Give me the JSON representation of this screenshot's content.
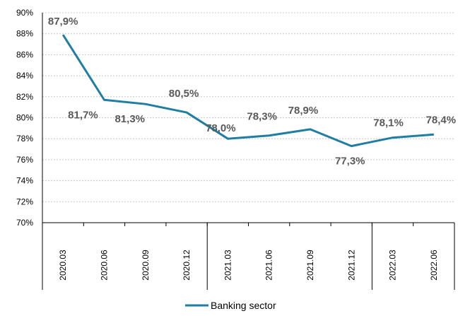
{
  "chart_data": {
    "type": "line",
    "title": "",
    "xlabel": "",
    "ylabel": "",
    "categories": [
      "2020.03",
      "2020.06",
      "2020.09",
      "2020.12",
      "2021.03",
      "2021.06",
      "2021.09",
      "2021.12",
      "2022.03",
      "2022.06"
    ],
    "series": [
      {
        "name": "Banking sector",
        "values": [
          87.9,
          81.7,
          81.3,
          80.5,
          78.0,
          78.3,
          78.9,
          77.3,
          78.1,
          78.4
        ],
        "data_labels": [
          "87,9%",
          "81,7%",
          "81,3%",
          "80,5%",
          "78,0%",
          "78,3%",
          "78,9%",
          "77,3%",
          "78,1%",
          "78,4%"
        ],
        "color": "#1f7ea1"
      }
    ],
    "ylim": [
      70,
      90
    ],
    "y_ticks": [
      "70%",
      "72%",
      "74%",
      "76%",
      "78%",
      "80%",
      "82%",
      "84%",
      "86%",
      "88%",
      "90%"
    ],
    "grid": true,
    "legend_position": "bottom"
  }
}
